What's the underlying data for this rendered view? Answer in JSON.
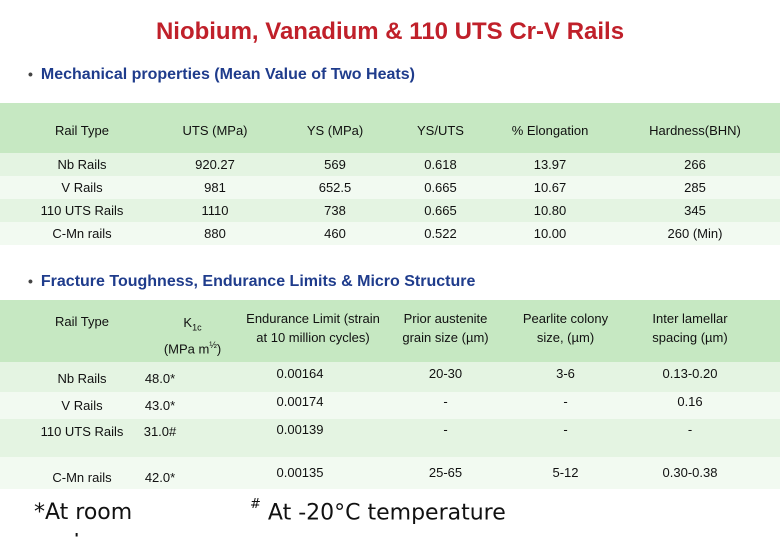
{
  "title": "Niobium, Vanadium & 110 UTS Cr-V Rails",
  "section1": {
    "bullet": "•",
    "heading": "Mechanical properties (Mean Value of  Two Heats)",
    "headers": [
      "Rail Type",
      "UTS (MPa)",
      "YS  (MPa)",
      "YS/UTS",
      "% Elongation",
      "Hardness(BHN)"
    ],
    "rows": [
      [
        "Nb Rails",
        "920.27",
        "569",
        "0.618",
        "13.97",
        "266"
      ],
      [
        "V Rails",
        "981",
        "652.5",
        "0.665",
        "10.67",
        "285"
      ],
      [
        "110 UTS Rails",
        "1110",
        "738",
        "0.665",
        "10.80",
        "345"
      ],
      [
        "C-Mn rails",
        "880",
        "460",
        "0.522",
        "10.00",
        "260 (Min)"
      ]
    ]
  },
  "section2": {
    "bullet": "•",
    "heading": "Fracture Toughness, Endurance Limits & Micro Structure",
    "headers": {
      "rail_type": "Rail Type",
      "k1c_k": "K",
      "k1c_sub": "1c",
      "k1c_unit": "(MPa m",
      "k1c_sup": "½",
      "k1c_close": ")",
      "endurance": "Endurance Limit (strain at 10 million cycles)",
      "grain": "Prior austenite grain size (µm)",
      "colony": "Pearlite colony size, (µm)",
      "spacing": "Inter lamellar spacing (µm)"
    },
    "rows": [
      [
        "Nb Rails",
        "48.0*",
        "0.00164",
        "20-30",
        "3-6",
        "0.13-0.20"
      ],
      [
        "V Rails",
        "43.0*",
        "0.00174",
        "-",
        "-",
        "0.16"
      ],
      [
        "110 UTS Rails",
        "31.0#",
        "0.00139",
        "-",
        "-",
        "-"
      ],
      [
        "C-Mn rails",
        "42.0*",
        "0.00135",
        "25-65",
        "5-12",
        "0.30-0.38"
      ]
    ]
  },
  "footnotes": {
    "room": "*At room",
    "room_cut": "temperature",
    "minus20_mark": "#",
    "minus20": "At -20°C temperature"
  }
}
